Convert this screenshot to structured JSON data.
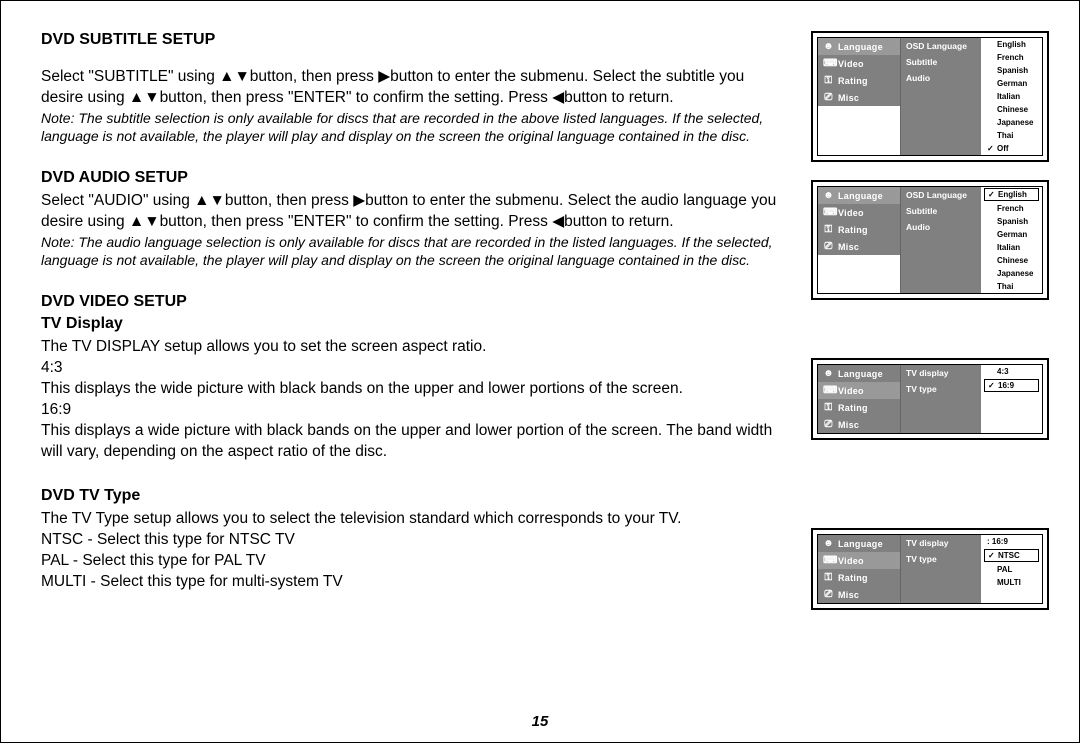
{
  "pageNumber": "15",
  "sections": {
    "subtitle": {
      "heading": "DVD SUBTITLE SETUP",
      "body": "Select \"SUBTITLE\" using ▲▼button, then press ▶button to enter the submenu. Select the subtitle you desire using ▲▼button, then press \"ENTER\" to confirm the setting. Press ◀button to return.",
      "note": "Note: The subtitle selection is only available for discs that are recorded in the above listed languages. If the selected, language is not available, the player will play and display on the screen the original language contained in the disc."
    },
    "audio": {
      "heading": "DVD AUDIO SETUP",
      "body": "Select \"AUDIO\" using ▲▼button, then press ▶button to enter the submenu. Select the audio language you desire using ▲▼button, then press \"ENTER\" to confirm the setting. Press ◀button to return.",
      "note": "Note: The audio language selection is only available for discs that are recorded in the listed languages. If the selected, language is not available, the player will play and display on the screen the original language contained in the disc."
    },
    "video": {
      "heading": "DVD VIDEO SETUP",
      "sub": "TV Display",
      "line1": "The TV DISPLAY setup allows you to set the screen aspect ratio.",
      "line2": "4:3",
      "line3": "This displays the wide picture with black bands on the upper and lower portions of the screen.",
      "line4": "16:9",
      "line5": "This displays a wide picture with black bands on the upper and lower portion of the screen. The band width will vary, depending on the aspect ratio of the disc."
    },
    "tvtype": {
      "heading": "DVD TV Type",
      "line1": "The TV Type setup allows you to select the television standard which corresponds to your TV.",
      "line2": "NTSC - Select this type for NTSC TV",
      "line3": "PAL - Select this type for PAL TV",
      "line4": "MULTI - Select this type for multi-system TV"
    }
  },
  "osd": {
    "leftItems": [
      {
        "icon": "☻",
        "label": "Language"
      },
      {
        "icon": "⌨",
        "label": "Video"
      },
      {
        "icon": "⚿",
        "label": "Rating"
      },
      {
        "icon": "⎚",
        "label": "Misc"
      }
    ],
    "menu1": {
      "mid": [
        "OSD Language",
        "Subtitle",
        "Audio"
      ],
      "right": [
        "English",
        "French",
        "Spanish",
        "German",
        "Italian",
        "Chinese",
        "Japanese",
        "Thai",
        "Off"
      ],
      "checkedIndex": 8,
      "activeIndex": -1,
      "activeLeft": 0
    },
    "menu2": {
      "mid": [
        "OSD Language",
        "Subtitle",
        "Audio"
      ],
      "right": [
        "English",
        "French",
        "Spanish",
        "German",
        "Italian",
        "Chinese",
        "Japanese",
        "Thai"
      ],
      "checkedIndex": 0,
      "activeIndex": 0,
      "activeLeft": 0
    },
    "menu3": {
      "mid": [
        "TV display",
        "TV type"
      ],
      "right": [
        "4:3",
        "16:9"
      ],
      "checkedIndex": 1,
      "activeIndex": 1,
      "activeLeft": 1
    },
    "menu4": {
      "mid": [
        "TV display",
        "TV type"
      ],
      "midRightLabel": ": 16:9",
      "right": [
        "NTSC",
        "PAL",
        "MULTI"
      ],
      "checkedIndex": 0,
      "activeIndex": 0,
      "activeLeft": 1
    }
  }
}
